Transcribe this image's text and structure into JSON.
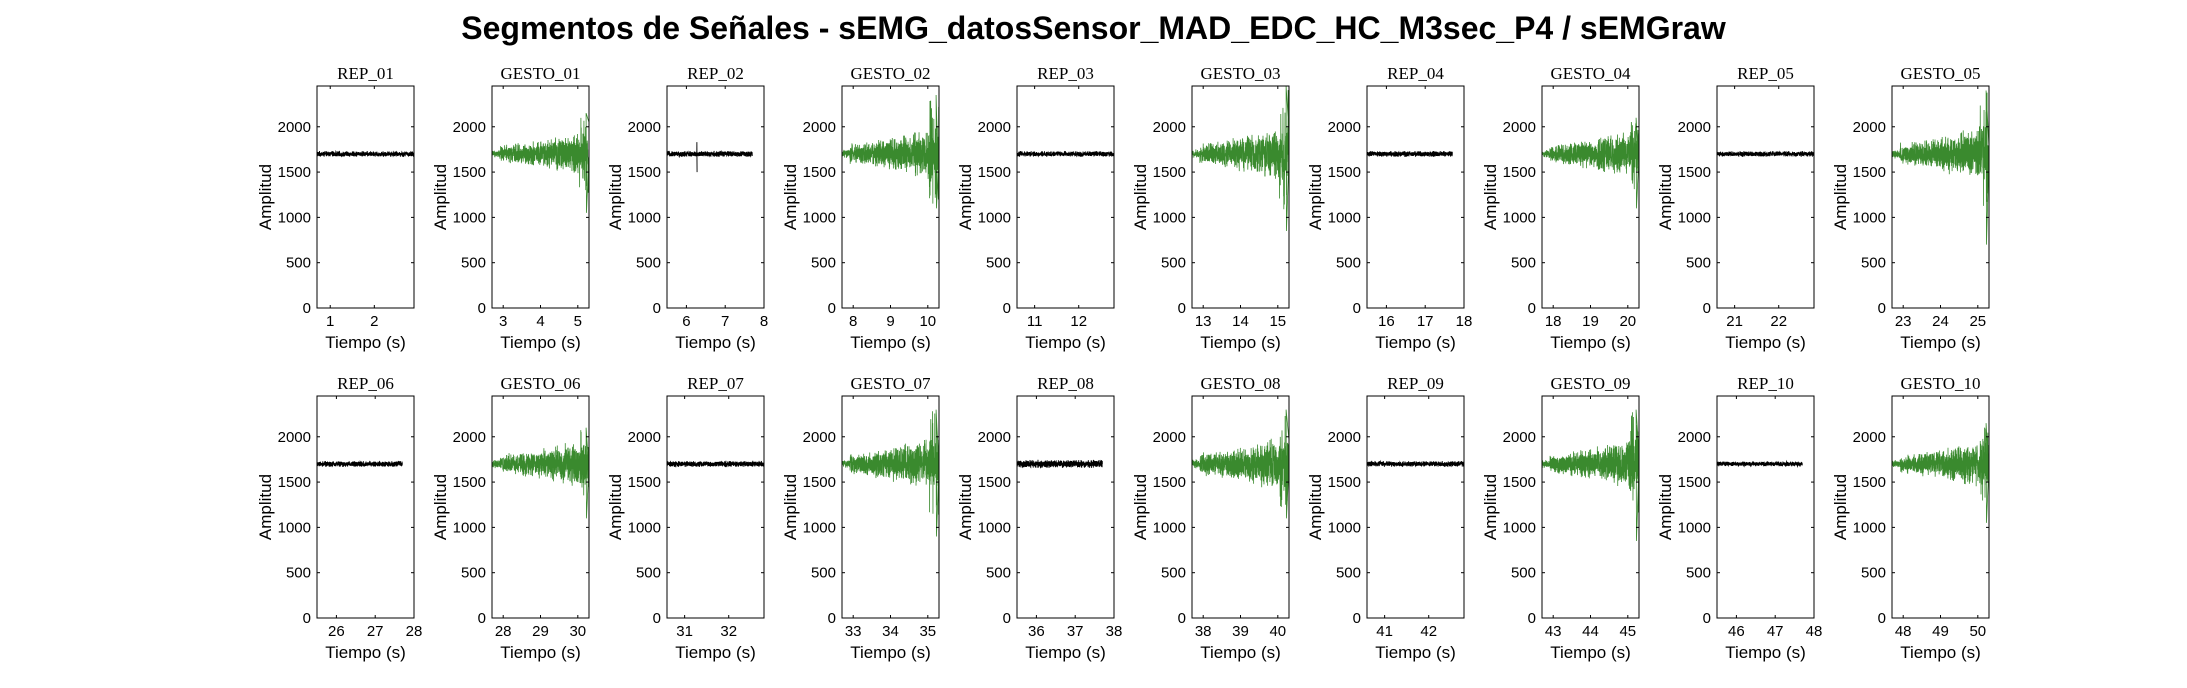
{
  "figure": {
    "title": "Segmentos de Señales - sEMG_datosSensor_MAD_EDC_HC_M3sec_P4 / sEMGraw"
  },
  "colors": {
    "rep": "#000000",
    "gesto": "#3a8a2e",
    "axes": "#000000"
  },
  "chart_data": [
    {
      "type": "line",
      "title": "REP_01",
      "xlabel": "Tiempo (s)",
      "ylabel": "Amplitud",
      "xlim": [
        0.7,
        2.9
      ],
      "ylim": [
        0,
        2450
      ],
      "xticks": [
        1,
        2
      ],
      "xticklabels": [
        "1",
        "2"
      ],
      "yticks": [
        0,
        500,
        1000,
        1500,
        2000
      ],
      "yticklabels": [
        "0",
        "500",
        "1000",
        "1500",
        "2000"
      ],
      "series": [
        {
          "name": "REP_01",
          "kind": "rep",
          "x_range": [
            0.7,
            2.9
          ],
          "baseline": 1700,
          "noise": 28,
          "min": 1620,
          "max": 1780
        }
      ]
    },
    {
      "type": "line",
      "title": "GESTO_01",
      "xlabel": "Tiempo (s)",
      "ylabel": "Amplitud",
      "xlim": [
        2.7,
        5.3
      ],
      "ylim": [
        0,
        2450
      ],
      "xticks": [
        3,
        4,
        5
      ],
      "xticklabels": [
        "3",
        "4",
        "5"
      ],
      "yticks": [
        0,
        500,
        1000,
        1500,
        2000
      ],
      "yticklabels": [
        "0",
        "500",
        "1000",
        "1500",
        "2000"
      ],
      "series": [
        {
          "name": "GESTO_01",
          "kind": "gesto",
          "x_range": [
            2.7,
            5.3
          ],
          "baseline": 1700,
          "noise": 110,
          "min": 1050,
          "max": 2150
        }
      ]
    },
    {
      "type": "line",
      "title": "REP_02",
      "xlabel": "Tiempo (s)",
      "ylabel": "Amplitud",
      "xlim": [
        5.5,
        8.0
      ],
      "ylim": [
        0,
        2450
      ],
      "xticks": [
        6,
        7,
        8
      ],
      "xticklabels": [
        "6",
        "7",
        "8"
      ],
      "yticks": [
        0,
        500,
        1000,
        1500,
        2000
      ],
      "yticklabels": [
        "0",
        "500",
        "1000",
        "1500",
        "2000"
      ],
      "series": [
        {
          "name": "REP_02",
          "kind": "rep",
          "x_range": [
            5.5,
            7.7
          ],
          "baseline": 1700,
          "noise": 30,
          "min": 1500,
          "max": 1830
        }
      ]
    },
    {
      "type": "line",
      "title": "GESTO_02",
      "xlabel": "Tiempo (s)",
      "ylabel": "Amplitud",
      "xlim": [
        7.7,
        10.3
      ],
      "ylim": [
        0,
        2450
      ],
      "xticks": [
        8,
        9,
        10
      ],
      "xticklabels": [
        "8",
        "9",
        "10"
      ],
      "yticks": [
        0,
        500,
        1000,
        1500,
        2000
      ],
      "yticklabels": [
        "0",
        "500",
        "1000",
        "1500",
        "2000"
      ],
      "series": [
        {
          "name": "GESTO_02",
          "kind": "gesto",
          "x_range": [
            7.7,
            10.3
          ],
          "baseline": 1700,
          "noise": 130,
          "min": 1100,
          "max": 2350
        }
      ]
    },
    {
      "type": "line",
      "title": "REP_03",
      "xlabel": "Tiempo (s)",
      "ylabel": "Amplitud",
      "xlim": [
        10.6,
        12.8
      ],
      "ylim": [
        0,
        2450
      ],
      "xticks": [
        11,
        12
      ],
      "xticklabels": [
        "11",
        "12"
      ],
      "yticks": [
        0,
        500,
        1000,
        1500,
        2000
      ],
      "yticklabels": [
        "0",
        "500",
        "1000",
        "1500",
        "2000"
      ],
      "series": [
        {
          "name": "REP_03",
          "kind": "rep",
          "x_range": [
            10.6,
            12.8
          ],
          "baseline": 1700,
          "noise": 28,
          "min": 1630,
          "max": 1770
        }
      ]
    },
    {
      "type": "line",
      "title": "GESTO_03",
      "xlabel": "Tiempo (s)",
      "ylabel": "Amplitud",
      "xlim": [
        12.7,
        15.3
      ],
      "ylim": [
        0,
        2450
      ],
      "xticks": [
        13,
        14,
        15
      ],
      "xticklabels": [
        "13",
        "14",
        "15"
      ],
      "yticks": [
        0,
        500,
        1000,
        1500,
        2000
      ],
      "yticklabels": [
        "0",
        "500",
        "1000",
        "1500",
        "2000"
      ],
      "series": [
        {
          "name": "GESTO_03",
          "kind": "gesto",
          "x_range": [
            12.7,
            15.3
          ],
          "baseline": 1700,
          "noise": 135,
          "min": 850,
          "max": 2450
        }
      ]
    },
    {
      "type": "line",
      "title": "REP_04",
      "xlabel": "Tiempo (s)",
      "ylabel": "Amplitud",
      "xlim": [
        15.5,
        18.0
      ],
      "ylim": [
        0,
        2450
      ],
      "xticks": [
        16,
        17,
        18
      ],
      "xticklabels": [
        "16",
        "17",
        "18"
      ],
      "yticks": [
        0,
        500,
        1000,
        1500,
        2000
      ],
      "yticklabels": [
        "0",
        "500",
        "1000",
        "1500",
        "2000"
      ],
      "series": [
        {
          "name": "REP_04",
          "kind": "rep",
          "x_range": [
            15.5,
            17.7
          ],
          "baseline": 1700,
          "noise": 28,
          "min": 1630,
          "max": 1770
        }
      ]
    },
    {
      "type": "line",
      "title": "GESTO_04",
      "xlabel": "Tiempo (s)",
      "ylabel": "Amplitud",
      "xlim": [
        17.7,
        20.3
      ],
      "ylim": [
        0,
        2450
      ],
      "xticks": [
        18,
        19,
        20
      ],
      "xticklabels": [
        "18",
        "19",
        "20"
      ],
      "yticks": [
        0,
        500,
        1000,
        1500,
        2000
      ],
      "yticklabels": [
        "0",
        "500",
        "1000",
        "1500",
        "2000"
      ],
      "series": [
        {
          "name": "GESTO_04",
          "kind": "gesto",
          "x_range": [
            17.7,
            20.3
          ],
          "baseline": 1700,
          "noise": 120,
          "min": 1100,
          "max": 2100
        }
      ]
    },
    {
      "type": "line",
      "title": "REP_05",
      "xlabel": "Tiempo (s)",
      "ylabel": "Amplitud",
      "xlim": [
        20.6,
        22.8
      ],
      "ylim": [
        0,
        2450
      ],
      "xticks": [
        21,
        22
      ],
      "xticklabels": [
        "21",
        "22"
      ],
      "yticks": [
        0,
        500,
        1000,
        1500,
        2000
      ],
      "yticklabels": [
        "0",
        "500",
        "1000",
        "1500",
        "2000"
      ],
      "series": [
        {
          "name": "REP_05",
          "kind": "rep",
          "x_range": [
            20.6,
            22.8
          ],
          "baseline": 1700,
          "noise": 28,
          "min": 1630,
          "max": 1770
        }
      ]
    },
    {
      "type": "line",
      "title": "GESTO_05",
      "xlabel": "Tiempo (s)",
      "ylabel": "Amplitud",
      "xlim": [
        22.7,
        25.3
      ],
      "ylim": [
        0,
        2450
      ],
      "xticks": [
        23,
        24,
        25
      ],
      "xticklabels": [
        "23",
        "24",
        "25"
      ],
      "yticks": [
        0,
        500,
        1000,
        1500,
        2000
      ],
      "yticklabels": [
        "0",
        "500",
        "1000",
        "1500",
        "2000"
      ],
      "series": [
        {
          "name": "GESTO_05",
          "kind": "gesto",
          "x_range": [
            22.7,
            25.3
          ],
          "baseline": 1700,
          "noise": 140,
          "min": 700,
          "max": 2400
        }
      ]
    },
    {
      "type": "line",
      "title": "REP_06",
      "xlabel": "Tiempo (s)",
      "ylabel": "Amplitud",
      "xlim": [
        25.5,
        28.0
      ],
      "ylim": [
        0,
        2450
      ],
      "xticks": [
        26,
        27,
        28
      ],
      "xticklabels": [
        "26",
        "27",
        "28"
      ],
      "yticks": [
        0,
        500,
        1000,
        1500,
        2000
      ],
      "yticklabels": [
        "0",
        "500",
        "1000",
        "1500",
        "2000"
      ],
      "series": [
        {
          "name": "REP_06",
          "kind": "rep",
          "x_range": [
            25.5,
            27.7
          ],
          "baseline": 1700,
          "noise": 30,
          "min": 1620,
          "max": 1780
        }
      ]
    },
    {
      "type": "line",
      "title": "GESTO_06",
      "xlabel": "Tiempo (s)",
      "ylabel": "Amplitud",
      "xlim": [
        27.7,
        30.3
      ],
      "ylim": [
        0,
        2450
      ],
      "xticks": [
        28,
        29,
        30
      ],
      "xticklabels": [
        "28",
        "29",
        "30"
      ],
      "yticks": [
        0,
        500,
        1000,
        1500,
        2000
      ],
      "yticklabels": [
        "0",
        "500",
        "1000",
        "1500",
        "2000"
      ],
      "series": [
        {
          "name": "GESTO_06",
          "kind": "gesto",
          "x_range": [
            27.7,
            30.3
          ],
          "baseline": 1700,
          "noise": 120,
          "min": 1100,
          "max": 2100
        }
      ]
    },
    {
      "type": "line",
      "title": "REP_07",
      "xlabel": "Tiempo (s)",
      "ylabel": "Amplitud",
      "xlim": [
        30.6,
        32.8
      ],
      "ylim": [
        0,
        2450
      ],
      "xticks": [
        31,
        32
      ],
      "xticklabels": [
        "31",
        "32"
      ],
      "yticks": [
        0,
        500,
        1000,
        1500,
        2000
      ],
      "yticklabels": [
        "0",
        "500",
        "1000",
        "1500",
        "2000"
      ],
      "series": [
        {
          "name": "REP_07",
          "kind": "rep",
          "x_range": [
            30.6,
            32.8
          ],
          "baseline": 1700,
          "noise": 30,
          "min": 1600,
          "max": 1790
        }
      ]
    },
    {
      "type": "line",
      "title": "GESTO_07",
      "xlabel": "Tiempo (s)",
      "ylabel": "Amplitud",
      "xlim": [
        32.7,
        35.3
      ],
      "ylim": [
        0,
        2450
      ],
      "xticks": [
        33,
        34,
        35
      ],
      "xticklabels": [
        "33",
        "34",
        "35"
      ],
      "yticks": [
        0,
        500,
        1000,
        1500,
        2000
      ],
      "yticklabels": [
        "0",
        "500",
        "1000",
        "1500",
        "2000"
      ],
      "series": [
        {
          "name": "GESTO_07",
          "kind": "gesto",
          "x_range": [
            32.7,
            35.3
          ],
          "baseline": 1700,
          "noise": 130,
          "min": 900,
          "max": 2300
        }
      ]
    },
    {
      "type": "line",
      "title": "REP_08",
      "xlabel": "Tiempo (s)",
      "ylabel": "Amplitud",
      "xlim": [
        35.5,
        38.0
      ],
      "ylim": [
        0,
        2450
      ],
      "xticks": [
        36,
        37,
        38
      ],
      "xticklabels": [
        "36",
        "37",
        "38"
      ],
      "yticks": [
        0,
        500,
        1000,
        1500,
        2000
      ],
      "yticklabels": [
        "0",
        "500",
        "1000",
        "1500",
        "2000"
      ],
      "series": [
        {
          "name": "REP_08",
          "kind": "rep",
          "x_range": [
            35.5,
            37.7
          ],
          "baseline": 1700,
          "noise": 40,
          "min": 1550,
          "max": 1800
        }
      ]
    },
    {
      "type": "line",
      "title": "GESTO_08",
      "xlabel": "Tiempo (s)",
      "ylabel": "Amplitud",
      "xlim": [
        37.7,
        40.3
      ],
      "ylim": [
        0,
        2450
      ],
      "xticks": [
        38,
        39,
        40
      ],
      "xticklabels": [
        "38",
        "39",
        "40"
      ],
      "yticks": [
        0,
        500,
        1000,
        1500,
        2000
      ],
      "yticklabels": [
        "0",
        "500",
        "1000",
        "1500",
        "2000"
      ],
      "series": [
        {
          "name": "GESTO_08",
          "kind": "gesto",
          "x_range": [
            37.7,
            40.3
          ],
          "baseline": 1700,
          "noise": 135,
          "min": 1100,
          "max": 2300
        }
      ]
    },
    {
      "type": "line",
      "title": "REP_09",
      "xlabel": "Tiempo (s)",
      "ylabel": "Amplitud",
      "xlim": [
        40.6,
        42.8
      ],
      "ylim": [
        0,
        2450
      ],
      "xticks": [
        41,
        42
      ],
      "xticklabels": [
        "41",
        "42"
      ],
      "yticks": [
        0,
        500,
        1000,
        1500,
        2000
      ],
      "yticklabels": [
        "0",
        "500",
        "1000",
        "1500",
        "2000"
      ],
      "series": [
        {
          "name": "REP_09",
          "kind": "rep",
          "x_range": [
            40.6,
            42.8
          ],
          "baseline": 1700,
          "noise": 28,
          "min": 1630,
          "max": 1770
        }
      ]
    },
    {
      "type": "line",
      "title": "GESTO_09",
      "xlabel": "Tiempo (s)",
      "ylabel": "Amplitud",
      "xlim": [
        42.7,
        45.3
      ],
      "ylim": [
        0,
        2450
      ],
      "xticks": [
        43,
        44,
        45
      ],
      "xticklabels": [
        "43",
        "44",
        "45"
      ],
      "yticks": [
        0,
        500,
        1000,
        1500,
        2000
      ],
      "yticklabels": [
        "0",
        "500",
        "1000",
        "1500",
        "2000"
      ],
      "series": [
        {
          "name": "GESTO_09",
          "kind": "gesto",
          "x_range": [
            42.7,
            45.3
          ],
          "baseline": 1700,
          "noise": 125,
          "min": 850,
          "max": 2300
        }
      ]
    },
    {
      "type": "line",
      "title": "REP_10",
      "xlabel": "Tiempo (s)",
      "ylabel": "Amplitud",
      "xlim": [
        45.5,
        48.0
      ],
      "ylim": [
        0,
        2450
      ],
      "xticks": [
        46,
        47,
        48
      ],
      "xticklabels": [
        "46",
        "47",
        "48"
      ],
      "yticks": [
        0,
        500,
        1000,
        1500,
        2000
      ],
      "yticklabels": [
        "0",
        "500",
        "1000",
        "1500",
        "2000"
      ],
      "series": [
        {
          "name": "REP_10",
          "kind": "rep",
          "x_range": [
            45.5,
            47.7
          ],
          "baseline": 1700,
          "noise": 25,
          "min": 1640,
          "max": 1760
        }
      ]
    },
    {
      "type": "line",
      "title": "GESTO_10",
      "xlabel": "Tiempo (s)",
      "ylabel": "Amplitud",
      "xlim": [
        47.7,
        50.3
      ],
      "ylim": [
        0,
        2450
      ],
      "xticks": [
        48,
        49,
        50
      ],
      "xticklabels": [
        "48",
        "49",
        "50"
      ],
      "yticks": [
        0,
        500,
        1000,
        1500,
        2000
      ],
      "yticklabels": [
        "0",
        "500",
        "1000",
        "1500",
        "2000"
      ],
      "series": [
        {
          "name": "GESTO_10",
          "kind": "gesto",
          "x_range": [
            47.7,
            50.3
          ],
          "baseline": 1700,
          "noise": 115,
          "min": 1050,
          "max": 2150
        }
      ]
    }
  ]
}
